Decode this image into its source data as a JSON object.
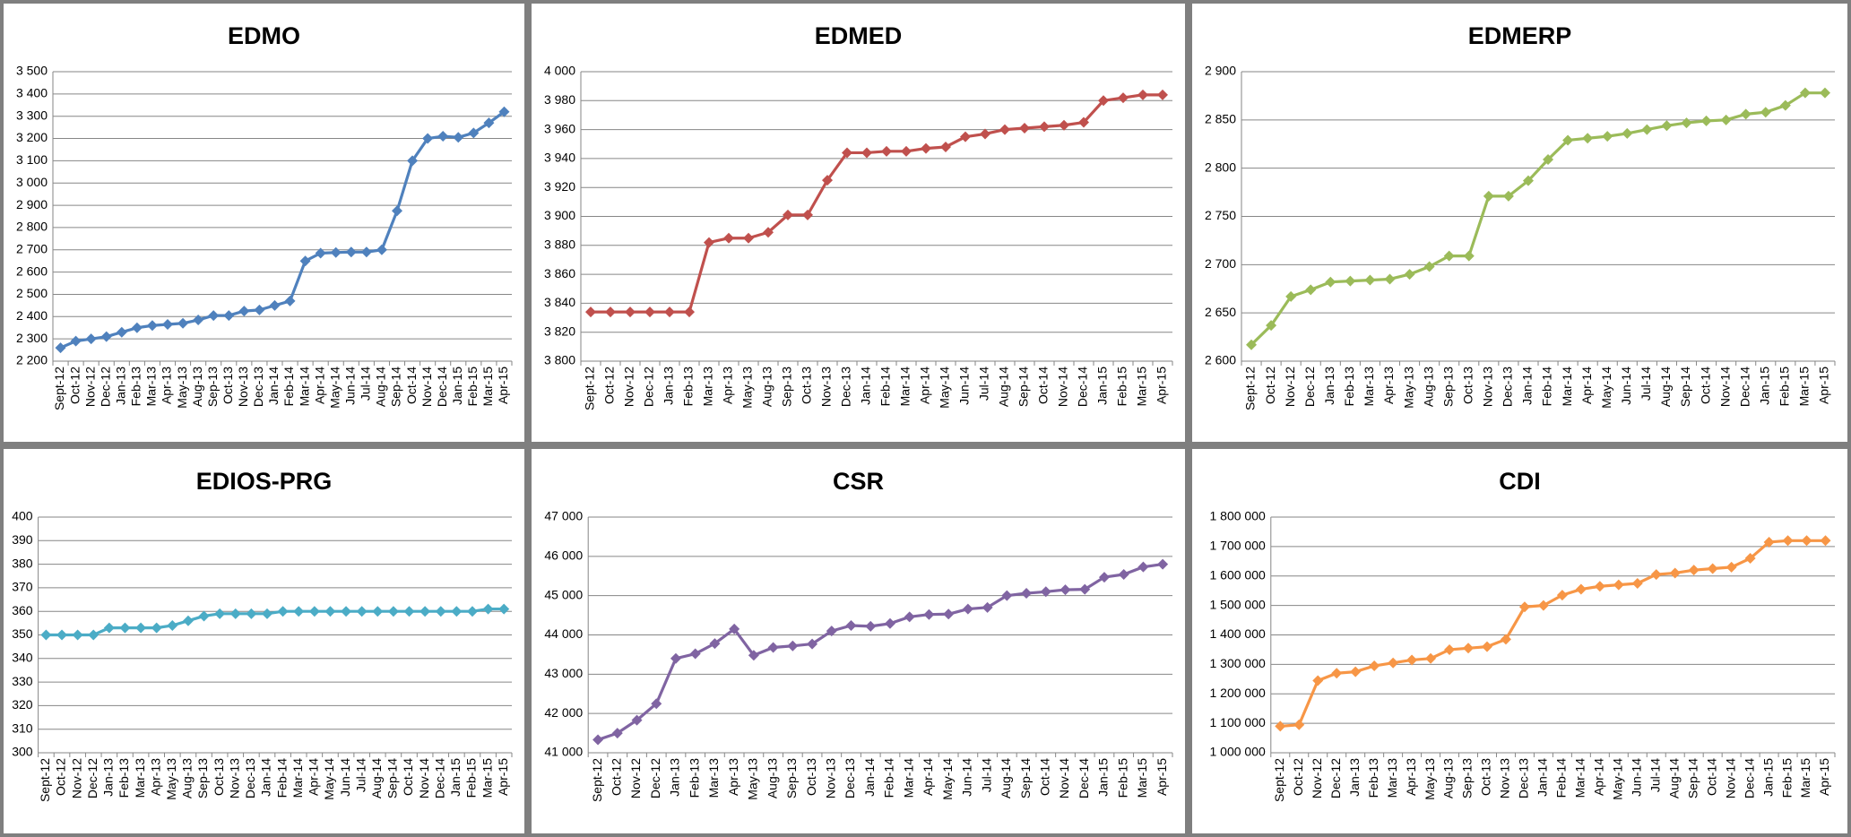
{
  "chart_data": [
    {
      "type": "line",
      "title": "EDMO",
      "color": "#4f81bd",
      "grid": true,
      "categories": [
        "Sept-12",
        "Oct-12",
        "Nov-12",
        "Dec-12",
        "Jan-13",
        "Feb-13",
        "Mar-13",
        "Apr-13",
        "May-13",
        "Aug-13",
        "Sep-13",
        "Oct-13",
        "Nov-13",
        "Dec-13",
        "Jan-14",
        "Feb-14",
        "Mar-14",
        "Apr-14",
        "May-14",
        "Jun-14",
        "Jul-14",
        "Aug-14",
        "Sep-14",
        "Oct-14",
        "Nov-14",
        "Dec-14",
        "Jan-15",
        "Feb-15",
        "Mar-15",
        "Apr-15"
      ],
      "values": [
        2260,
        2290,
        2300,
        2310,
        2330,
        2350,
        2360,
        2365,
        2370,
        2385,
        2405,
        2405,
        2425,
        2430,
        2450,
        2470,
        2650,
        2685,
        2688,
        2690,
        2690,
        2700,
        2875,
        3100,
        3200,
        3210,
        3205,
        3225,
        3270,
        3320
      ],
      "ylim": [
        2200,
        3500
      ],
      "yticks": [
        {
          "value": 2200,
          "label": "2 200"
        },
        {
          "value": 2300,
          "label": "2 300"
        },
        {
          "value": 2400,
          "label": "2 400"
        },
        {
          "value": 2500,
          "label": "2 500"
        },
        {
          "value": 2600,
          "label": "2 600"
        },
        {
          "value": 2700,
          "label": "2 700"
        },
        {
          "value": 2800,
          "label": "2 800"
        },
        {
          "value": 2900,
          "label": "2 900"
        },
        {
          "value": 3000,
          "label": "3 000"
        },
        {
          "value": 3100,
          "label": "3 100"
        },
        {
          "value": 3200,
          "label": "3 200"
        },
        {
          "value": 3300,
          "label": "3 300"
        },
        {
          "value": 3400,
          "label": "3 400"
        },
        {
          "value": 3500,
          "label": "3 500"
        }
      ]
    },
    {
      "type": "line",
      "title": "EDMED",
      "color": "#c0504d",
      "grid": true,
      "categories": [
        "Sept-12",
        "Oct-12",
        "Nov-12",
        "Dec-12",
        "Jan-13",
        "Feb-13",
        "Mar-13",
        "Apr-13",
        "May-13",
        "Aug-13",
        "Sep-13",
        "Oct-13",
        "Nov-13",
        "Dec-13",
        "Jan-14",
        "Feb-14",
        "Mar-14",
        "Apr-14",
        "May-14",
        "Jun-14",
        "Jul-14",
        "Aug-14",
        "Sep-14",
        "Oct-14",
        "Nov-14",
        "Dec-14",
        "Jan-15",
        "Feb-15",
        "Mar-15",
        "Apr-15"
      ],
      "values": [
        3834,
        3834,
        3834,
        3834,
        3834,
        3834,
        3882,
        3885,
        3885,
        3889,
        3901,
        3901,
        3925,
        3944,
        3944,
        3945,
        3945,
        3947,
        3948,
        3955,
        3957,
        3960,
        3961,
        3962,
        3963,
        3965,
        3980,
        3982,
        3984,
        3984
      ],
      "ylim": [
        3800,
        4000
      ],
      "yticks": [
        {
          "value": 3800,
          "label": "3 800"
        },
        {
          "value": 3820,
          "label": "3 820"
        },
        {
          "value": 3840,
          "label": "3 840"
        },
        {
          "value": 3860,
          "label": "3 860"
        },
        {
          "value": 3880,
          "label": "3 880"
        },
        {
          "value": 3900,
          "label": "3 900"
        },
        {
          "value": 3920,
          "label": "3 920"
        },
        {
          "value": 3940,
          "label": "3 940"
        },
        {
          "value": 3960,
          "label": "3 960"
        },
        {
          "value": 3980,
          "label": "3 980"
        },
        {
          "value": 4000,
          "label": "4 000"
        }
      ]
    },
    {
      "type": "line",
      "title": "EDMERP",
      "color": "#9bbb59",
      "grid": true,
      "categories": [
        "Sept-12",
        "Oct-12",
        "Nov-12",
        "Dec-12",
        "Jan-13",
        "Feb-13",
        "Mar-13",
        "Apr-13",
        "May-13",
        "Aug-13",
        "Sep-13",
        "Oct-13",
        "Nov-13",
        "Dec-13",
        "Jan-14",
        "Feb-14",
        "Mar-14",
        "Apr-14",
        "May-14",
        "Jun-14",
        "Jul-14",
        "Aug-14",
        "Sep-14",
        "Oct-14",
        "Nov-14",
        "Dec-14",
        "Jan-15",
        "Feb-15",
        "Mar-15",
        "Apr-15"
      ],
      "values": [
        2617,
        2637,
        2667,
        2674,
        2682,
        2683,
        2684,
        2685,
        2690,
        2698,
        2709,
        2709,
        2771,
        2771,
        2787,
        2809,
        2829,
        2831,
        2833,
        2836,
        2840,
        2844,
        2847,
        2849,
        2850,
        2856,
        2858,
        2865,
        2878,
        2878
      ],
      "ylim": [
        2600,
        2900
      ],
      "yticks": [
        {
          "value": 2600,
          "label": "2 600"
        },
        {
          "value": 2650,
          "label": "2 650"
        },
        {
          "value": 2700,
          "label": "2 700"
        },
        {
          "value": 2750,
          "label": "2 750"
        },
        {
          "value": 2800,
          "label": "2 800"
        },
        {
          "value": 2850,
          "label": "2 850"
        },
        {
          "value": 2900,
          "label": "2 900"
        }
      ]
    },
    {
      "type": "line",
      "title": "EDIOS-PRG",
      "color": "#4bacc6",
      "grid": true,
      "categories": [
        "Sept-12",
        "Oct-12",
        "Nov-12",
        "Dec-12",
        "Jan-13",
        "Feb-13",
        "Mar-13",
        "Apr-13",
        "May-13",
        "Aug-13",
        "Sep-13",
        "Oct-13",
        "Nov-13",
        "Dec-13",
        "Jan-14",
        "Feb-14",
        "Mar-14",
        "Apr-14",
        "May-14",
        "Jun-14",
        "Jul-14",
        "Aug-14",
        "Sep-14",
        "Oct-14",
        "Nov-14",
        "Dec-14",
        "Jan-15",
        "Feb-15",
        "Mar-15",
        "Apr-15"
      ],
      "values": [
        350,
        350,
        350,
        350,
        353,
        353,
        353,
        353,
        354,
        356,
        358,
        359,
        359,
        359,
        359,
        360,
        360,
        360,
        360,
        360,
        360,
        360,
        360,
        360,
        360,
        360,
        360,
        360,
        361,
        361
      ],
      "ylim": [
        300,
        400
      ],
      "yticks": [
        300,
        310,
        320,
        330,
        340,
        350,
        360,
        370,
        380,
        390,
        400
      ]
    },
    {
      "type": "line",
      "title": "CSR",
      "color": "#8064a2",
      "grid": true,
      "categories": [
        "Sept-12",
        "Oct-12",
        "Nov-12",
        "Dec-12",
        "Jan-13",
        "Feb-13",
        "Mar-13",
        "Apr-13",
        "May-13",
        "Aug-13",
        "Sep-13",
        "Oct-13",
        "Nov-13",
        "Dec-13",
        "Jan-14",
        "Feb-14",
        "Mar-14",
        "Apr-14",
        "May-14",
        "Jun-14",
        "Jul-14",
        "Aug-14",
        "Sep-14",
        "Oct-14",
        "Nov-14",
        "Dec-14",
        "Jan-15",
        "Feb-15",
        "Mar-15",
        "Apr-15"
      ],
      "values": [
        41330,
        41500,
        41830,
        42250,
        43400,
        43520,
        43780,
        44150,
        43480,
        43680,
        43720,
        43770,
        44100,
        44240,
        44220,
        44290,
        44460,
        44520,
        44530,
        44660,
        44700,
        45000,
        45060,
        45100,
        45150,
        45160,
        45470,
        45540,
        45730,
        45800
      ],
      "ylim": [
        41000,
        47000
      ],
      "yticks": [
        {
          "value": 41000,
          "label": "41 000"
        },
        {
          "value": 42000,
          "label": "42 000"
        },
        {
          "value": 43000,
          "label": "43 000"
        },
        {
          "value": 44000,
          "label": "44 000"
        },
        {
          "value": 45000,
          "label": "45 000"
        },
        {
          "value": 46000,
          "label": "46 000"
        },
        {
          "value": 47000,
          "label": "47 000"
        }
      ]
    },
    {
      "type": "line",
      "title": "CDI",
      "color": "#f79646",
      "grid": true,
      "categories": [
        "Sept-12",
        "Oct-12",
        "Nov-12",
        "Dec-12",
        "Jan-13",
        "Feb-13",
        "Mar-13",
        "Apr-13",
        "May-13",
        "Aug-13",
        "Sep-13",
        "Oct-13",
        "Nov-13",
        "Dec-13",
        "Jan-14",
        "Feb-14",
        "Mar-14",
        "Apr-14",
        "May-14",
        "Jun-14",
        "Jul-14",
        "Aug-14",
        "Sep-14",
        "Oct-14",
        "Nov-14",
        "Dec-14",
        "Jan-15",
        "Feb-15",
        "Mar-15",
        "Apr-15"
      ],
      "values": [
        1090000,
        1095000,
        1245000,
        1270000,
        1275000,
        1295000,
        1305000,
        1315000,
        1320000,
        1350000,
        1355000,
        1360000,
        1385000,
        1495000,
        1500000,
        1535000,
        1555000,
        1565000,
        1570000,
        1575000,
        1605000,
        1610000,
        1620000,
        1625000,
        1630000,
        1660000,
        1715000,
        1720000,
        1720000,
        1720000
      ],
      "ylim": [
        1000000,
        1800000
      ],
      "yticks": [
        {
          "value": 1000000,
          "label": "1 000 000"
        },
        {
          "value": 1100000,
          "label": "1 100 000"
        },
        {
          "value": 1200000,
          "label": "1 200 000"
        },
        {
          "value": 1300000,
          "label": "1 300 000"
        },
        {
          "value": 1400000,
          "label": "1 400 000"
        },
        {
          "value": 1500000,
          "label": "1 500 000"
        },
        {
          "value": 1600000,
          "label": "1 600 000"
        },
        {
          "value": 1700000,
          "label": "1 700 000"
        },
        {
          "value": 1800000,
          "label": "1 800 000"
        }
      ]
    }
  ]
}
